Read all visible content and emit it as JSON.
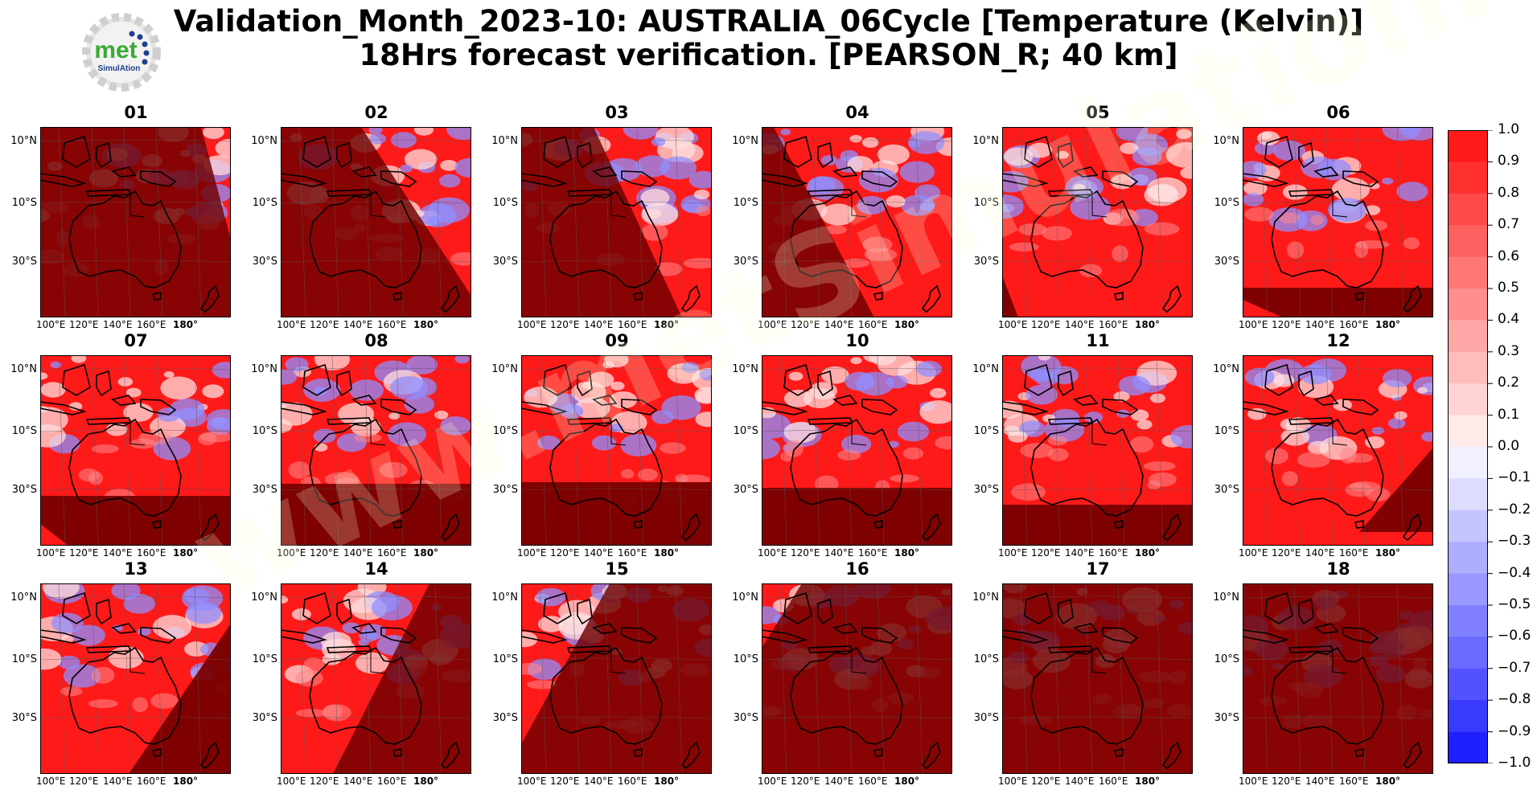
{
  "title_line1": "Validation_Month_2023-10: AUSTRALIA_06Cycle [Temperature (Kelvin)]",
  "title_line2": "18Hrs forecast verification.  [PEARSON_R; 40 km]",
  "logo": {
    "text": "met",
    "subtext": "SimulAtion",
    "icon": "gear-logo-icon"
  },
  "watermark": "www.metSimulation.com",
  "lat_labels": [
    "10°N",
    "10°S",
    "30°S"
  ],
  "lon_labels": [
    "100°E",
    "120°E",
    "140°E",
    "160°E",
    "180°"
  ],
  "panels": [
    {
      "label": "01"
    },
    {
      "label": "02"
    },
    {
      "label": "03"
    },
    {
      "label": "04"
    },
    {
      "label": "05"
    },
    {
      "label": "06"
    },
    {
      "label": "07"
    },
    {
      "label": "08"
    },
    {
      "label": "09"
    },
    {
      "label": "10"
    },
    {
      "label": "11"
    },
    {
      "label": "12"
    },
    {
      "label": "13"
    },
    {
      "label": "14"
    },
    {
      "label": "15"
    },
    {
      "label": "16"
    },
    {
      "label": "17"
    },
    {
      "label": "18"
    }
  ],
  "colorbar": {
    "ticks": [
      "1.0",
      "0.9",
      "0.8",
      "0.7",
      "0.6",
      "0.5",
      "0.4",
      "0.3",
      "0.2",
      "0.1",
      "0.0",
      "−0.1",
      "−0.2",
      "−0.3",
      "−0.4",
      "−0.5",
      "−0.6",
      "−0.7",
      "−0.8",
      "−0.9",
      "−1.0"
    ],
    "colors": [
      "#ff1a1a",
      "#ff3030",
      "#ff4a4a",
      "#ff6060",
      "#ff7777",
      "#ff8e8e",
      "#ffa6a6",
      "#ffbcbc",
      "#ffd3d3",
      "#ffeaea",
      "#f0f0ff",
      "#dcdcff",
      "#c4c4ff",
      "#aeaeff",
      "#9898ff",
      "#8080ff",
      "#6a6aff",
      "#5252ff",
      "#3a3aff",
      "#2020ff"
    ]
  },
  "colors": {
    "dark_region": "#7a0000",
    "red_region": "#ff1a1a",
    "coast": "#000000"
  }
}
